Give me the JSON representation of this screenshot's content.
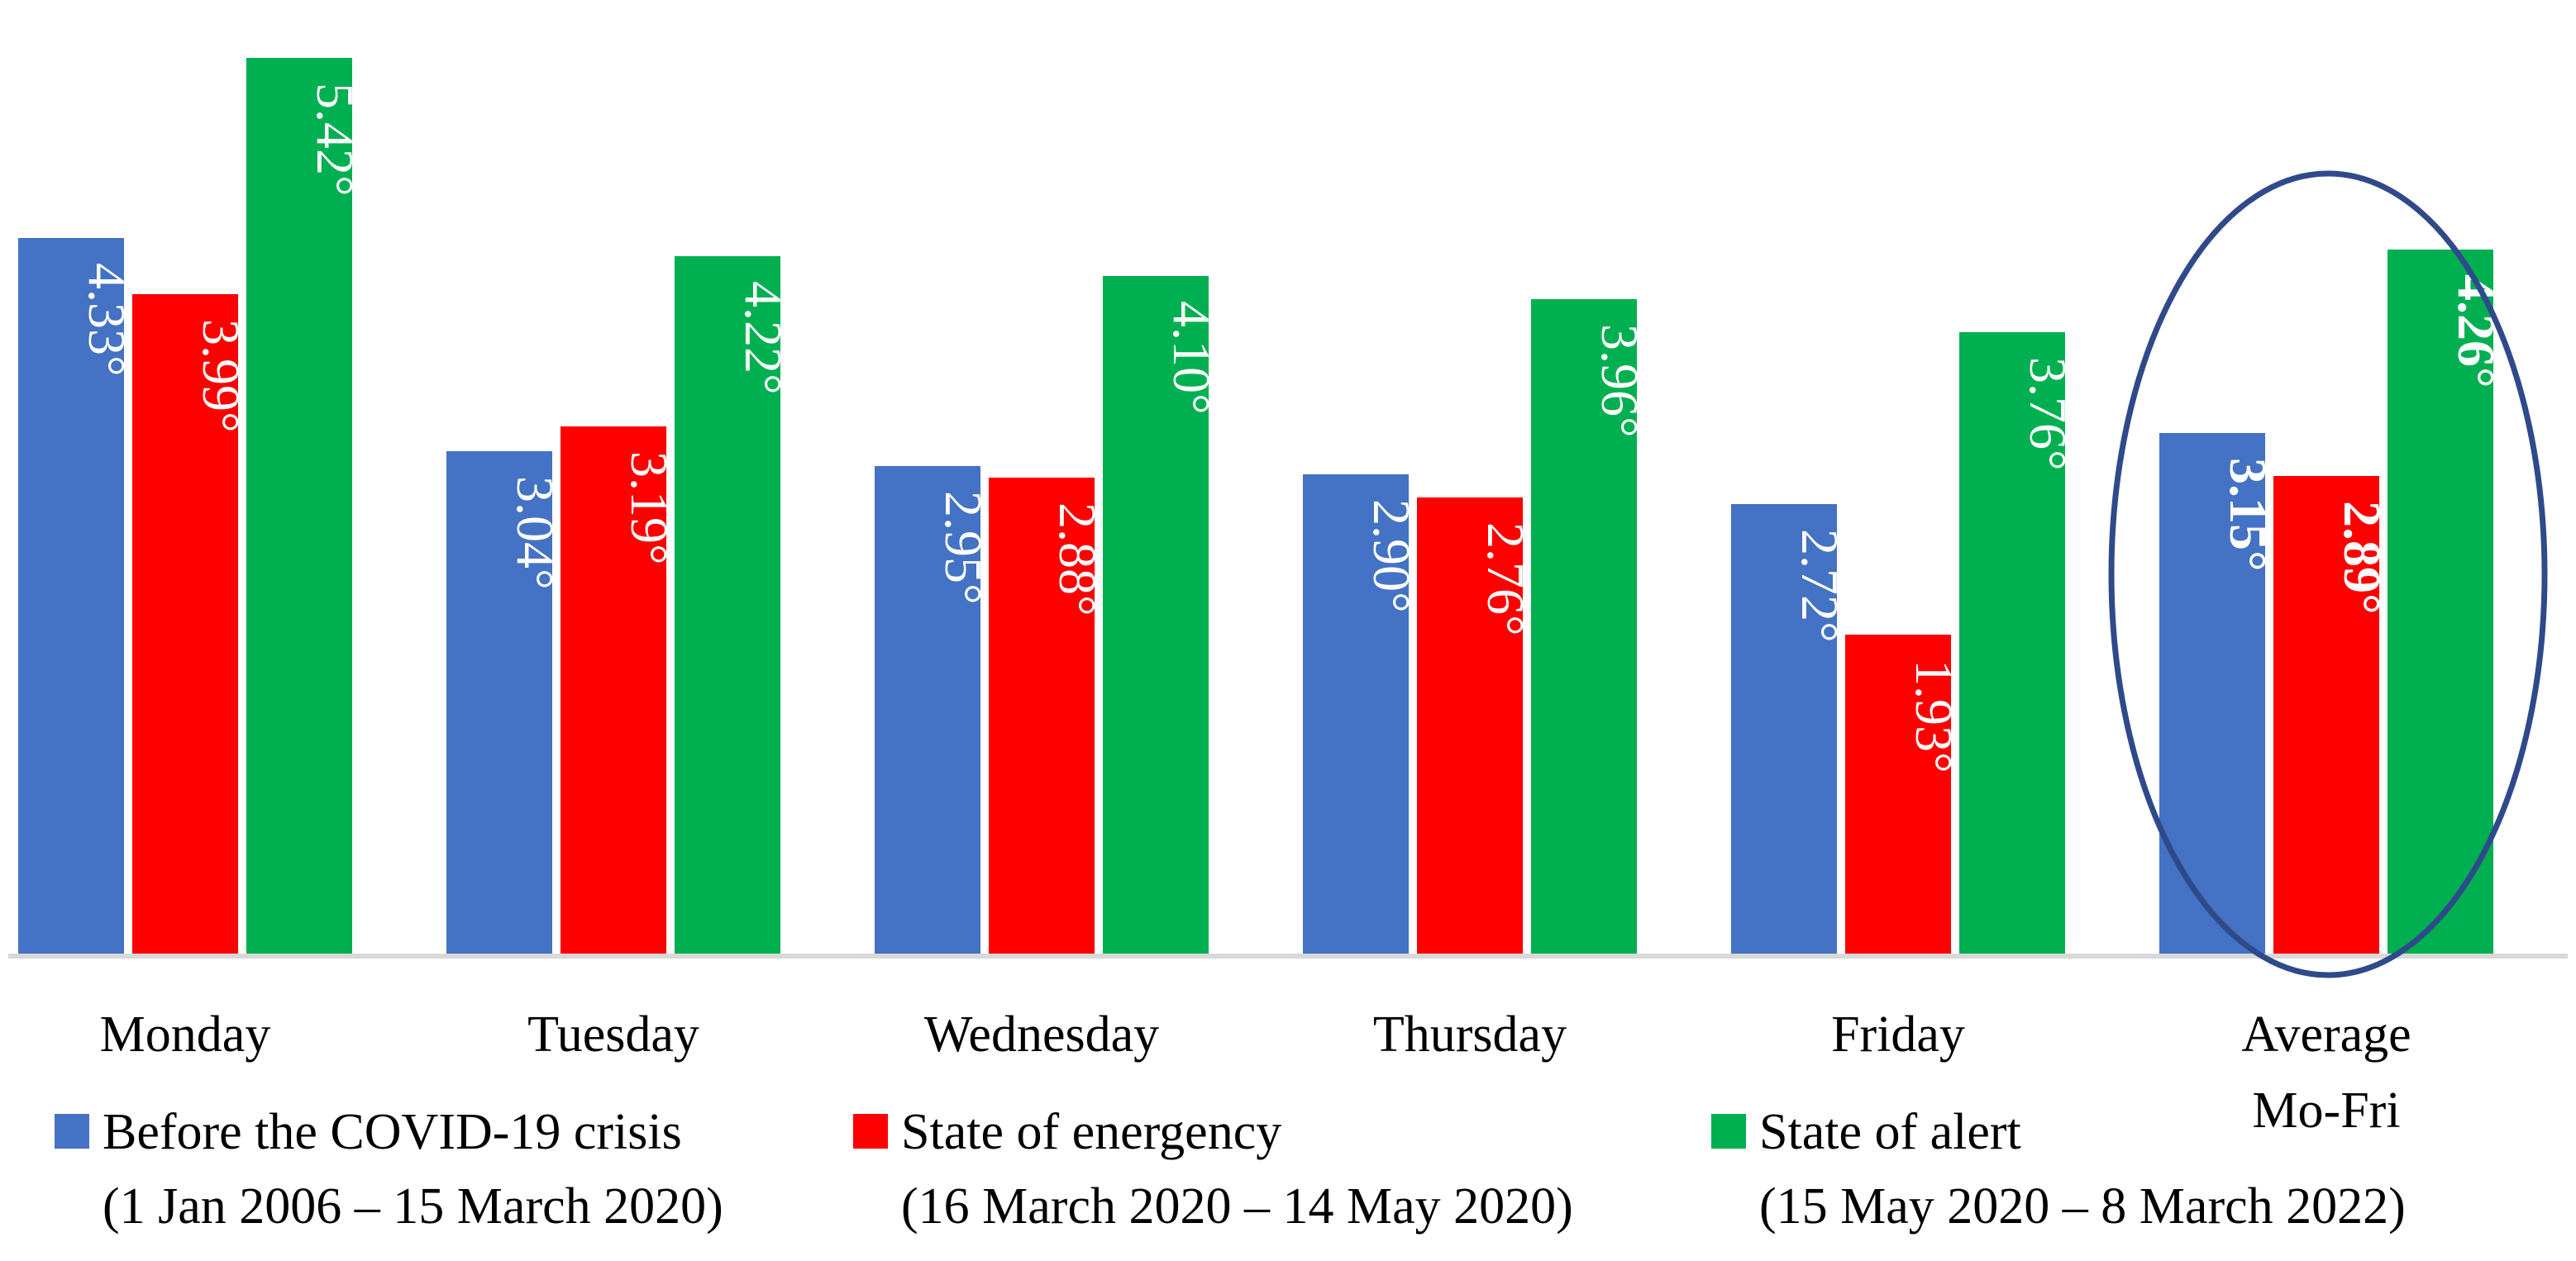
{
  "chart_data": {
    "type": "bar",
    "title": "",
    "xlabel": "",
    "ylabel": "",
    "ylim": [
      0,
      5.5
    ],
    "categories": [
      "Monday",
      "Tuesday",
      "Wednesday",
      "Thursday",
      "Friday",
      "Average Mo-Fri"
    ],
    "value_suffix": "°",
    "series": [
      {
        "name": "Before the COVID-19 crisis",
        "period": "(1 Jan 2006 – 15 March 2020)",
        "color": "#4472C4",
        "values": [
          4.33,
          3.04,
          2.95,
          2.9,
          2.72,
          3.15
        ]
      },
      {
        "name": "State of energency",
        "period": "(16 March 2020 – 14 May 2020)",
        "color": "#FF0000",
        "values": [
          3.99,
          3.19,
          2.88,
          2.76,
          1.93,
          2.89
        ]
      },
      {
        "name": "State of alert",
        "period": "(15 May 2020 – 8 March 2022)",
        "color": "#00B050",
        "values": [
          5.42,
          4.22,
          4.1,
          3.96,
          3.76,
          4.26
        ]
      }
    ],
    "highlight": {
      "category": "Average Mo-Fri",
      "shape": "ellipse",
      "color": "#2F4A8A"
    },
    "axis_color": "#D9D9D9",
    "grid": false,
    "legend_position": "bottom"
  }
}
